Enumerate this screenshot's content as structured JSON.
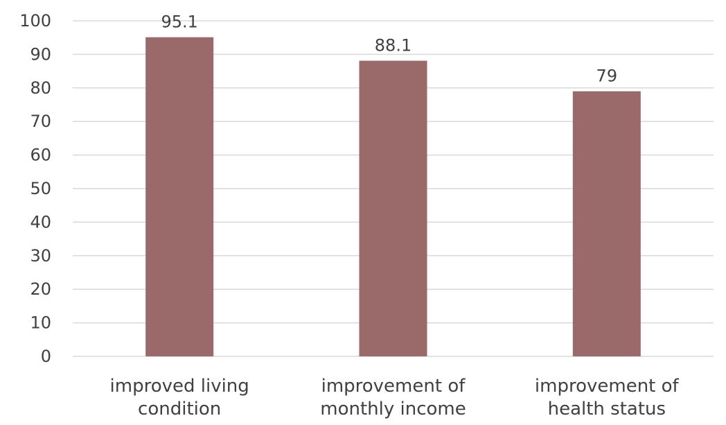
{
  "chart_data": {
    "type": "bar",
    "categories": [
      [
        "improved living",
        "condition"
      ],
      [
        "improvement of",
        "monthly income"
      ],
      [
        "improvement of",
        "health status"
      ]
    ],
    "values": [
      95.1,
      88.1,
      79
    ],
    "value_labels": [
      "95.1",
      "88.1",
      "79"
    ],
    "ylim": [
      0,
      100
    ],
    "yticks": [
      0,
      10,
      20,
      30,
      40,
      50,
      60,
      70,
      80,
      90,
      100
    ],
    "title": "",
    "xlabel": "",
    "ylabel": "",
    "grid": true,
    "legend": "none",
    "colors": {
      "bar": "#9a6969",
      "grid": "#d9d9d9",
      "text": "#404040"
    }
  }
}
